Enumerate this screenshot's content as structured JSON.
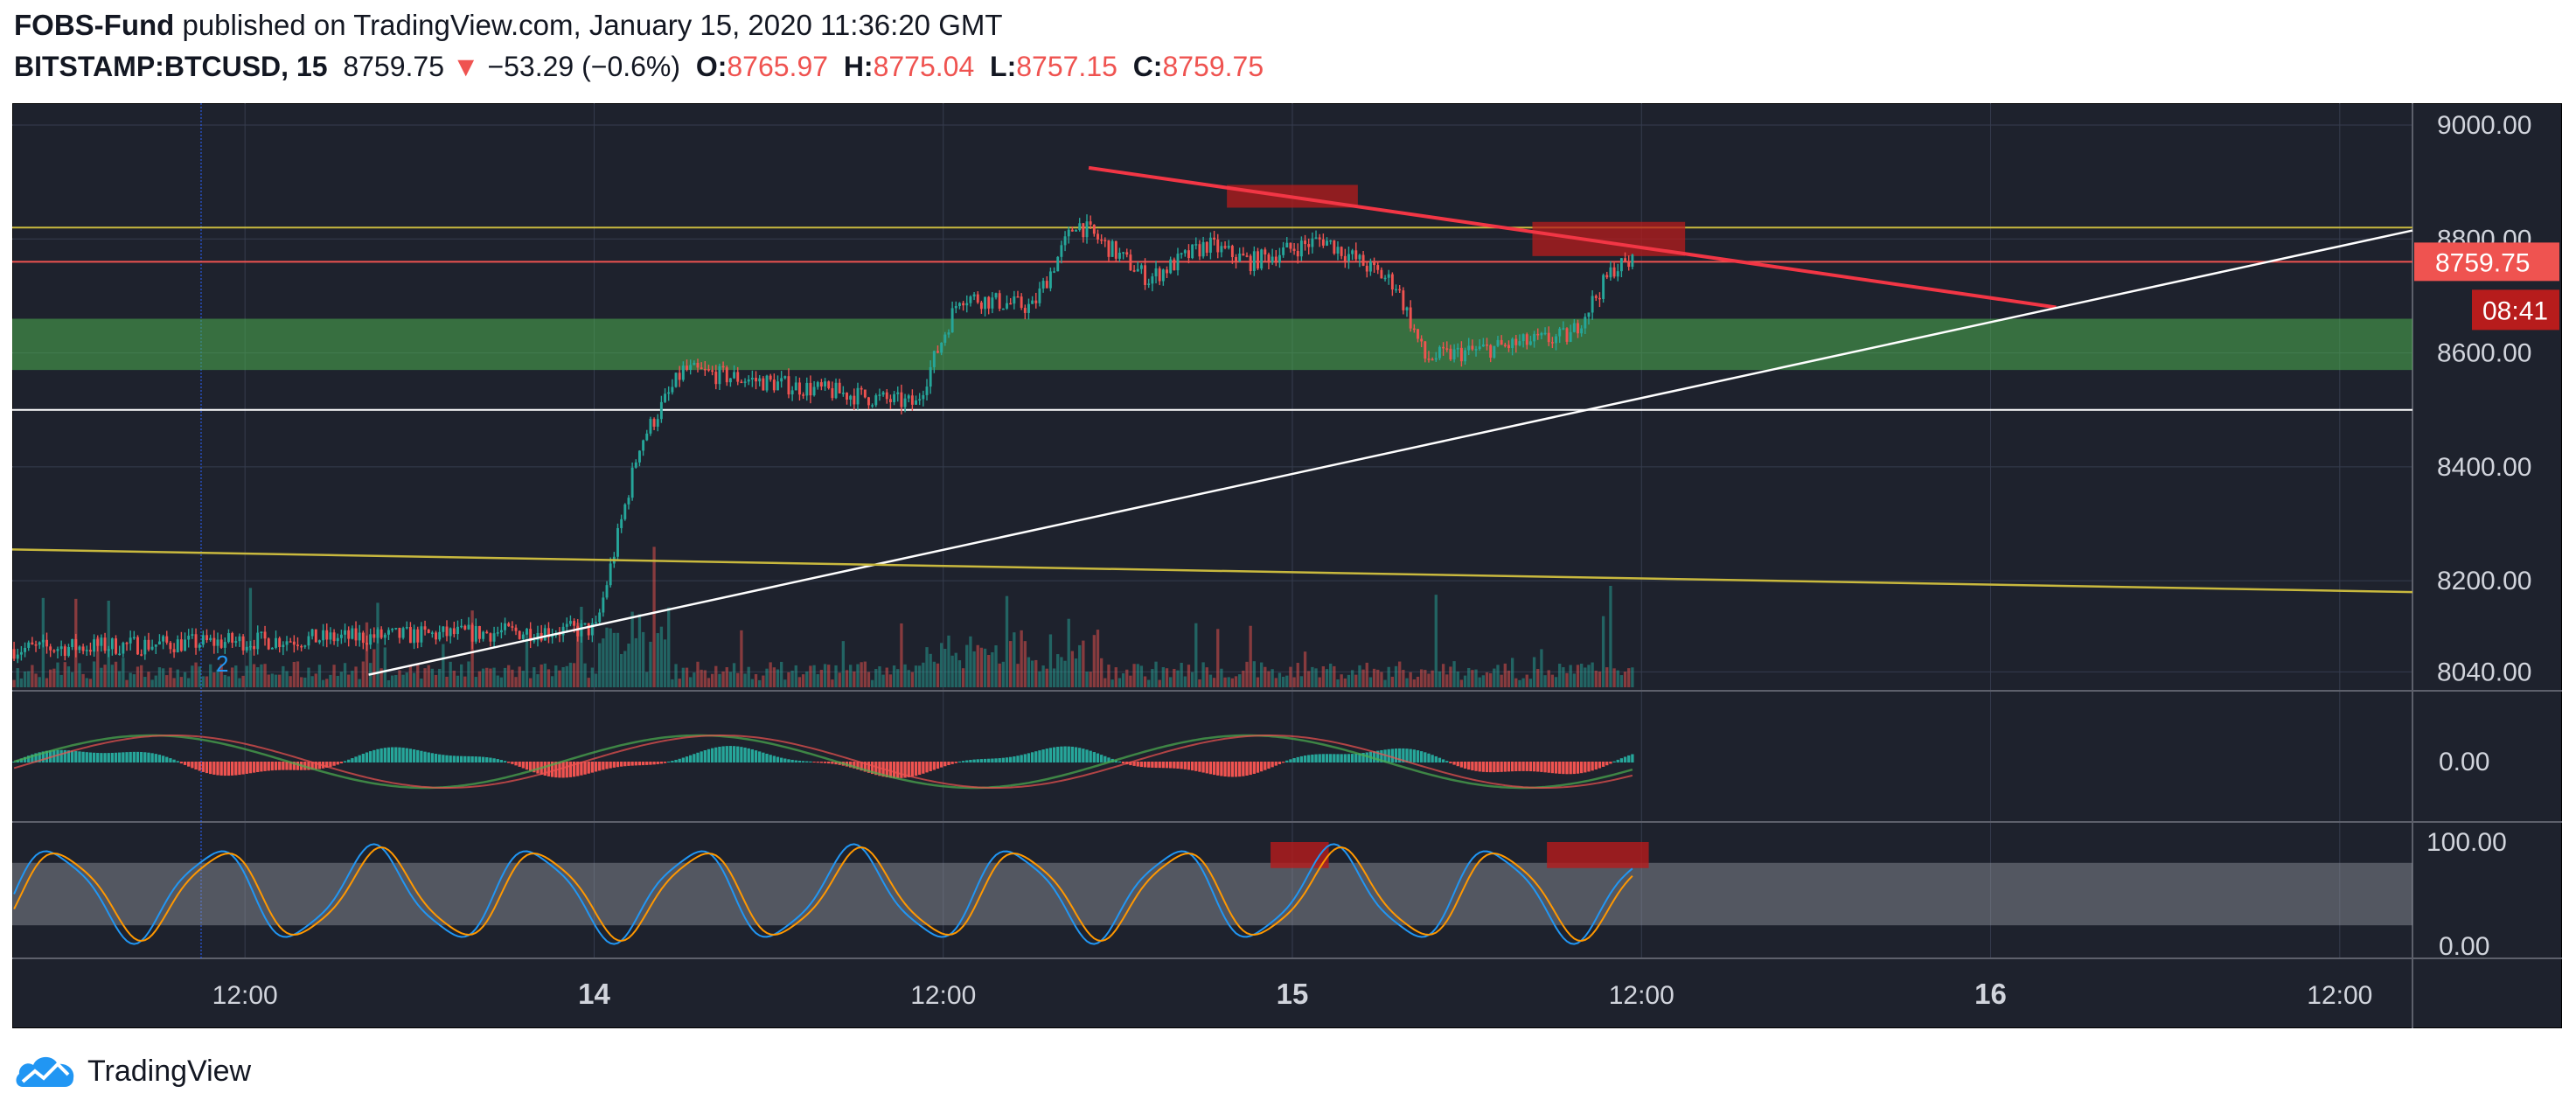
{
  "header": {
    "author": "FOBS-Fund",
    "published": "published on TradingView.com, January 15, 2020 11:36:20 GMT",
    "symbol": "BITSTAMP:BTCUSD, 15",
    "last": "8759.75",
    "change_arrow": "▼",
    "change": "−53.29 (−0.6%)",
    "o_label": "O:",
    "o_value": "8765.97",
    "h_label": "H:",
    "h_value": "8775.04",
    "l_label": "L:",
    "l_value": "8757.15",
    "c_label": "C:",
    "c_value": "8759.75"
  },
  "brand": {
    "name": "TradingView",
    "logo_icon": "tradingview-cloud-icon"
  },
  "colors": {
    "background": "#1e222d",
    "up": "#26a69a",
    "down": "#ef5350",
    "grid": "#363c4e",
    "zone": "#4caf50",
    "trend_red": "#f23645",
    "trend_yellow": "#c9b93e",
    "stoch_k": "#2196f3",
    "stoch_d": "#ff9800"
  },
  "chart_data": {
    "type": "candlestick",
    "symbol": "BITSTAMP:BTCUSD",
    "interval": "15",
    "x_ticks": [
      "12:00",
      "14",
      "12:00",
      "15",
      "12:00",
      "16",
      "12:00"
    ],
    "y_ticks": [
      "9000.00",
      "8800.00",
      "8600.00",
      "8400.00",
      "8200.00",
      "8040.00"
    ],
    "ylim": [
      7950,
      9020
    ],
    "last_price_label": "8759.75",
    "countdown_label": "08:41",
    "annotation": "2",
    "grid": true,
    "price_segments": [
      {
        "from_hour": 0,
        "to_hour": 40,
        "start": 8080,
        "end": 8115
      },
      {
        "from_hour": 40,
        "to_hour": 43,
        "start": 8115,
        "end": 8440
      },
      {
        "from_hour": 43,
        "to_hour": 46,
        "start": 8440,
        "end": 8570
      },
      {
        "from_hour": 46,
        "to_hour": 62,
        "start": 8570,
        "end": 8510
      },
      {
        "from_hour": 62,
        "to_hour": 65,
        "start": 8510,
        "end": 8700
      },
      {
        "from_hour": 65,
        "to_hour": 70,
        "start": 8700,
        "end": 8680
      },
      {
        "from_hour": 70,
        "to_hour": 73,
        "start": 8680,
        "end": 8830
      },
      {
        "from_hour": 73,
        "to_hour": 78,
        "start": 8830,
        "end": 8730
      },
      {
        "from_hour": 78,
        "to_hour": 82,
        "start": 8730,
        "end": 8790
      },
      {
        "from_hour": 82,
        "to_hour": 85,
        "start": 8790,
        "end": 8760
      },
      {
        "from_hour": 85,
        "to_hour": 90,
        "start": 8760,
        "end": 8800
      },
      {
        "from_hour": 90,
        "to_hour": 95,
        "start": 8800,
        "end": 8720
      },
      {
        "from_hour": 95,
        "to_hour": 97,
        "start": 8720,
        "end": 8590
      },
      {
        "from_hour": 97,
        "to_hour": 107,
        "start": 8590,
        "end": 8630
      },
      {
        "from_hour": 107,
        "to_hour": 110,
        "start": 8630,
        "end": 8750
      },
      {
        "from_hour": 110,
        "to_hour": 111.5,
        "start": 8750,
        "end": 8760
      }
    ],
    "levels": [
      {
        "name": "resistance-line",
        "price": 8820,
        "color": "#c9b93e"
      },
      {
        "name": "current-price-line",
        "price": 8760,
        "color": "#ef5350"
      },
      {
        "name": "support-white-line",
        "price": 8500,
        "color": "#ffffff"
      }
    ],
    "support_zone": {
      "from": 8570,
      "to": 8660
    },
    "trendlines": [
      {
        "name": "descending-red-trendline",
        "x1_hour": 74,
        "p1": 8925,
        "x2_hour": 140.5,
        "p2": 8680,
        "color": "#f23645"
      },
      {
        "name": "ascending-white-trendline",
        "x1_hour": 24.5,
        "p1": 8035,
        "x2_hour": 165,
        "p2": 8815,
        "color": "#ffffff"
      },
      {
        "name": "yellow-trendline",
        "x1_hour": 0,
        "p1": 8255,
        "x2_hour": 165,
        "p2": 8180,
        "color": "#c9b93e"
      }
    ],
    "highlight_boxes": [
      {
        "name": "top-resistance-box",
        "x1_hour": 83.5,
        "x2_hour": 92.5,
        "top": 8895,
        "bottom": 8855
      },
      {
        "name": "right-resistance-box",
        "x1_hour": 104.5,
        "x2_hour": 115,
        "top": 8830,
        "bottom": 8770
      }
    ],
    "macd": {
      "y_tick": "0.00"
    },
    "stochastic": {
      "y_ticks": [
        "100.00",
        "0.00"
      ],
      "band": [
        20,
        80
      ],
      "highlight_boxes": [
        {
          "x1_hour": 86.5,
          "x2_hour": 90.5
        },
        {
          "x1_hour": 105.5,
          "x2_hour": 112.5
        }
      ]
    }
  }
}
